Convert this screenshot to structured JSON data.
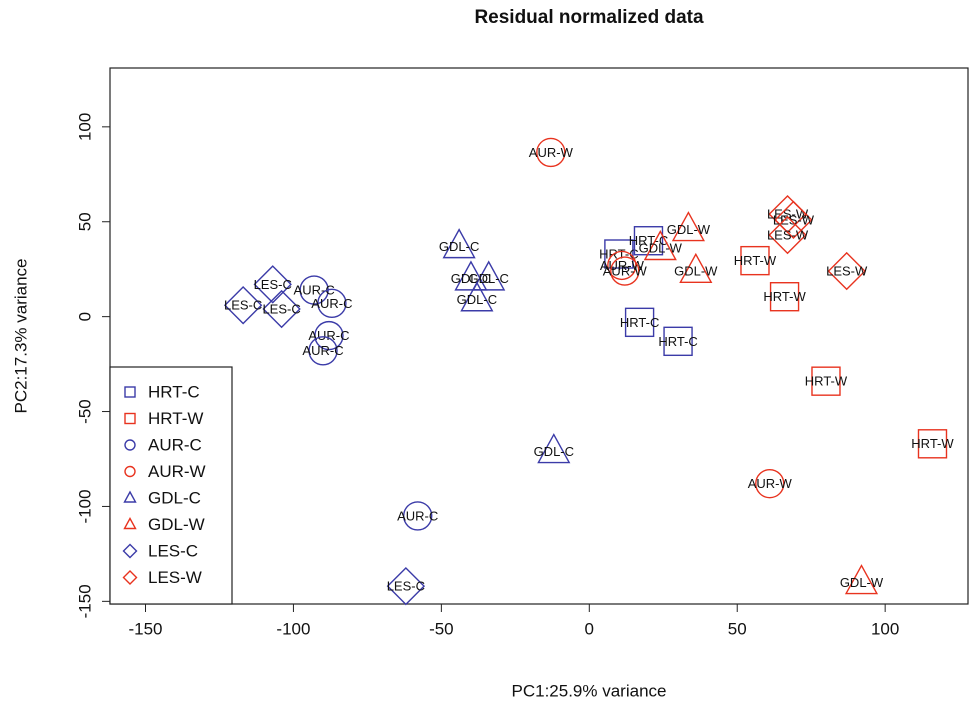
{
  "chart_data": {
    "type": "scatter",
    "title": "Residual normalized data",
    "xlabel": "PC1:25.9% variance",
    "ylabel": "PC2:17.3% variance",
    "xlim": [
      -162,
      128
    ],
    "ylim": [
      -151.4,
      131
    ],
    "xticks": [
      -150,
      -100,
      -50,
      0,
      50,
      100
    ],
    "yticks": [
      -150,
      -100,
      -50,
      0,
      50,
      100
    ],
    "legend": "bottom-left",
    "series": [
      {
        "name": "HRT-C",
        "color": "#3b3ba8",
        "marker": "square",
        "x": [
          10,
          20,
          17,
          30
        ],
        "y": [
          33,
          40,
          -3,
          -13
        ]
      },
      {
        "name": "HRT-W",
        "color": "#e8331f",
        "marker": "square",
        "x": [
          56,
          66,
          80,
          116
        ],
        "y": [
          29.5,
          10.5,
          -34,
          -67
        ]
      },
      {
        "name": "AUR-C",
        "color": "#3b3ba8",
        "marker": "circle",
        "x": [
          -93,
          -87,
          -88,
          -90,
          -58
        ],
        "y": [
          14,
          7,
          -10,
          -18,
          -105
        ]
      },
      {
        "name": "AUR-W",
        "color": "#e8331f",
        "marker": "circle",
        "x": [
          -13,
          11,
          12,
          61
        ],
        "y": [
          86.5,
          27,
          24,
          -88
        ]
      },
      {
        "name": "GDL-C",
        "color": "#3b3ba8",
        "marker": "triangle",
        "x": [
          -44,
          -40,
          -34,
          -38,
          -12
        ],
        "y": [
          37,
          20,
          20,
          9,
          -71
        ]
      },
      {
        "name": "GDL-W",
        "color": "#e8331f",
        "marker": "triangle",
        "x": [
          33.5,
          36,
          24,
          92
        ],
        "y": [
          46,
          24,
          36,
          -140
        ]
      },
      {
        "name": "LES-C",
        "color": "#3b3ba8",
        "marker": "diamond",
        "x": [
          -117,
          -107,
          -104,
          -62
        ],
        "y": [
          6,
          17,
          4,
          -142
        ]
      },
      {
        "name": "LES-W",
        "color": "#e8331f",
        "marker": "diamond",
        "x": [
          67,
          69,
          67,
          87
        ],
        "y": [
          54,
          51,
          43,
          24
        ]
      }
    ]
  }
}
